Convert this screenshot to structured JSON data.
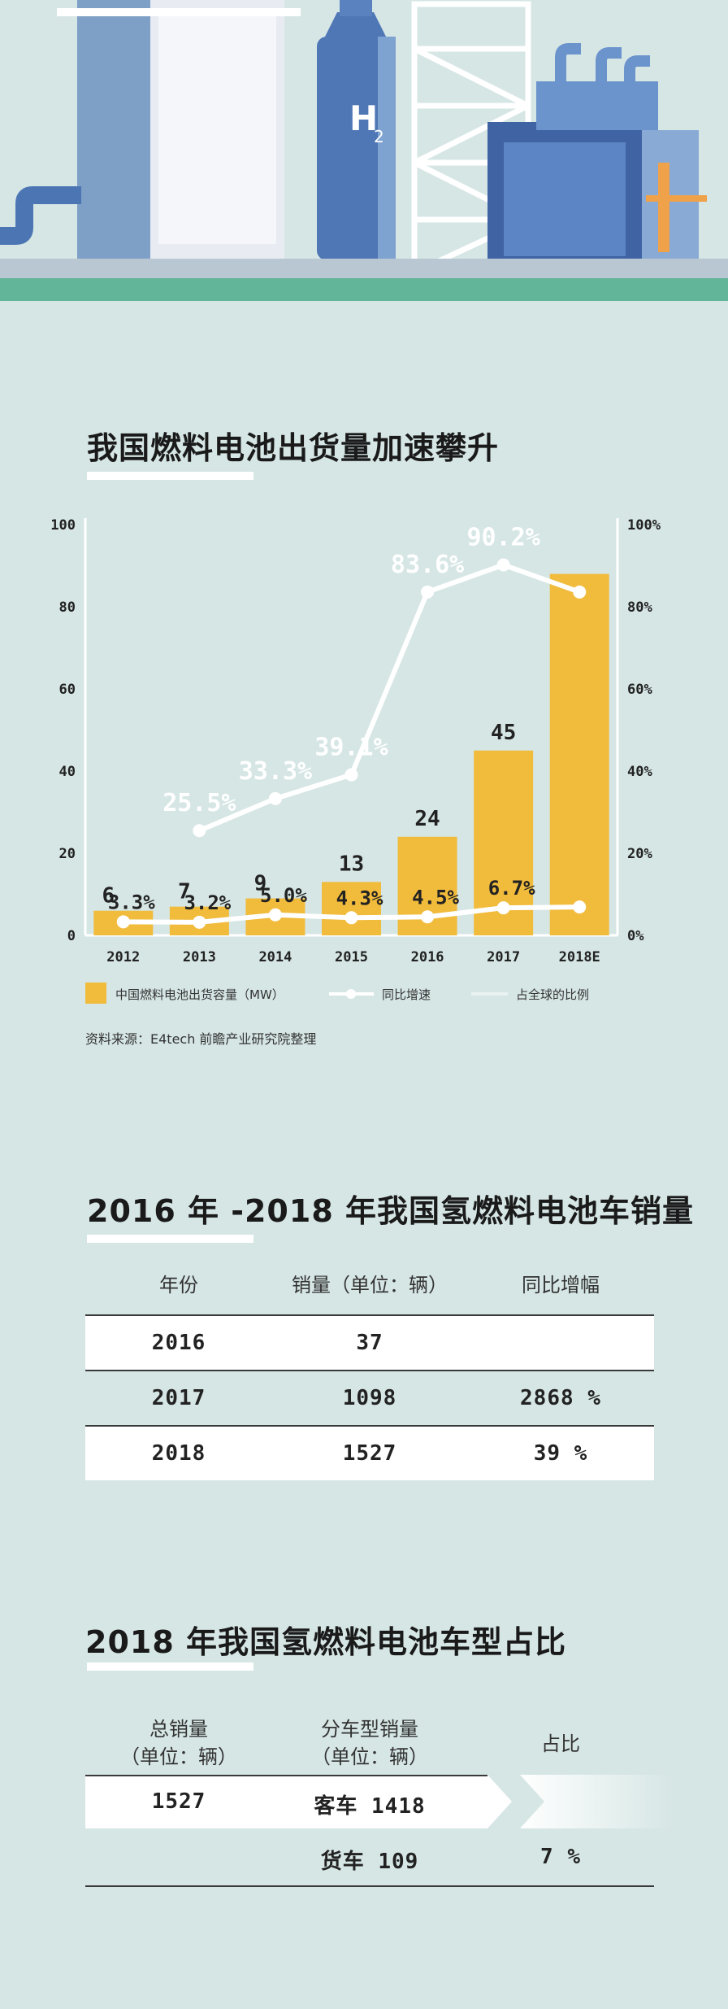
{
  "colors": {
    "background": "#d6e6e5",
    "bar": "#f1bb3c",
    "line": "#ffffff",
    "ground": "#63b59a"
  },
  "section1": {
    "title": "我国燃料电池出货量加速攀升"
  },
  "chart_data": {
    "type": "bar",
    "categories": [
      "2012",
      "2013",
      "2014",
      "2015",
      "2016",
      "2017",
      "2018E"
    ],
    "series": [
      {
        "name": "中国燃料电池出货容量（MW）",
        "type": "bar",
        "axis": "left",
        "values": [
          6,
          7,
          9,
          13,
          24,
          45,
          88
        ],
        "labels": [
          "6",
          "7",
          "9",
          "13",
          "24",
          "45",
          ""
        ]
      },
      {
        "name": "同比增速",
        "type": "line",
        "axis": "right",
        "values": [
          null,
          25.5,
          33.3,
          39.1,
          83.6,
          90.2,
          83.6
        ],
        "labels": [
          "",
          "25.5%",
          "33.3%",
          "39.1%",
          "83.6%",
          "90.2%",
          ""
        ]
      },
      {
        "name": "占全球的比例",
        "type": "line",
        "axis": "right",
        "values": [
          3.3,
          3.2,
          5.0,
          4.3,
          4.5,
          6.7,
          6.9
        ],
        "labels": [
          "3.3%",
          "3.2%",
          "5.0%",
          "4.3%",
          "4.5%",
          "6.7%",
          ""
        ]
      }
    ],
    "left_axis": {
      "ticks": [
        "0",
        "20",
        "40",
        "60",
        "80",
        "100"
      ],
      "ylim": [
        0,
        100
      ]
    },
    "right_axis": {
      "ticks": [
        "0%",
        "20%",
        "40%",
        "60%",
        "80%",
        "100%"
      ],
      "ylim": [
        0,
        100
      ]
    },
    "grid": false,
    "legend_position": "bottom",
    "source": "资料来源：E4tech 前瞻产业研究院整理"
  },
  "section2": {
    "title": "2016 年 -2018 年我国氢燃料电池车销量",
    "headers": [
      "年份",
      "销量（单位：辆）",
      "同比增幅"
    ],
    "rows": [
      [
        "2016",
        "37",
        ""
      ],
      [
        "2017",
        "1098",
        "2868 %"
      ],
      [
        "2018",
        "1527",
        "39 %"
      ]
    ]
  },
  "section3": {
    "title": "2018 年我国氢燃料电池车型占比",
    "headers": {
      "total_line1": "总销量",
      "total_line2": "（单位：辆）",
      "bytype_line1": "分车型销量",
      "bytype_line2": "（单位：辆）",
      "share": "占比"
    },
    "rows": [
      {
        "total": "1527",
        "type": "客车 1418",
        "share": ""
      },
      {
        "total": "",
        "type": "货车 109",
        "share": "7 %"
      }
    ]
  }
}
